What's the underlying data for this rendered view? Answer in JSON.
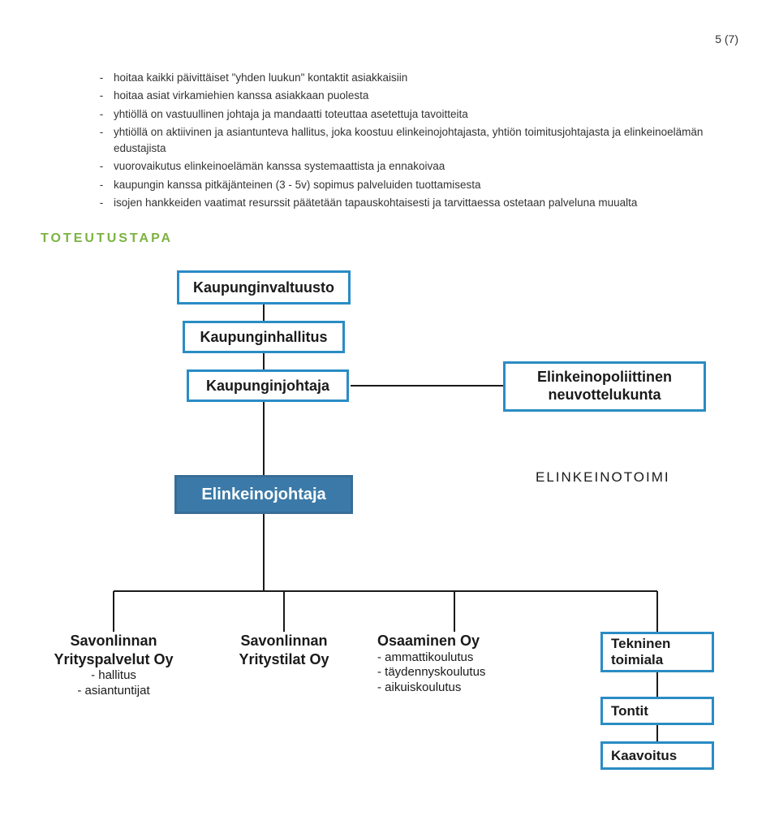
{
  "page_number": "5 (7)",
  "bullets": [
    "hoitaa kaikki päivittäiset \"yhden luukun\" kontaktit asiakkaisiin",
    "hoitaa asiat virkamiehien kanssa asiakkaan puolesta",
    "yhtiöllä on vastuullinen johtaja ja mandaatti toteuttaa asetettuja tavoitteita",
    "yhtiöllä on aktiivinen ja asiantunteva hallitus, joka koostuu elinkeinojohtajasta, yhtiön toimitusjohtajasta ja elinkeinoelämän edustajista",
    "vuorovaikutus elinkeinoelämän kanssa systemaattista ja ennakoivaa",
    "kaupungin kanssa pitkäjänteinen (3 - 5v) sopimus palveluiden tuottamisesta",
    "isojen hankkeiden vaatimat resurssit päätetään tapauskohtaisesti ja tarvittaessa ostetaan palveluna muualta"
  ],
  "section_title": "TOTEUTUSTAPA",
  "diagram": {
    "colors": {
      "blue_border": "#2a8cc4",
      "blue_fill": "#3b7aa8",
      "blue_fill_dark": "#396d96",
      "line": "#1a1a1a",
      "text": "#1a1a1a",
      "node_font_size": 18
    },
    "label_right": "ELINKEINOTOIMI",
    "top_chain": [
      {
        "id": "valtuusto",
        "label": "Kaupunginvaltuusto"
      },
      {
        "id": "hallitus",
        "label": "Kaupunginhallitus"
      },
      {
        "id": "johtaja",
        "label": "Kaupunginjohtaja"
      }
    ],
    "side_box": {
      "id": "neuvottelukunta",
      "line1": "Elinkeinopoliittinen",
      "line2": "neuvottelukunta"
    },
    "hub": {
      "id": "elinkeinojohtaja",
      "label": "Elinkeinojohtaja"
    },
    "children": [
      {
        "id": "yrityspalvelut",
        "title_l1": "Savonlinnan",
        "title_l2": "Yrityspalvelut Oy",
        "subs": [
          "- hallitus",
          "- asiantuntijat"
        ]
      },
      {
        "id": "yritystilat",
        "title_l1": "Savonlinnan",
        "title_l2": "Yritystilat Oy",
        "subs": []
      },
      {
        "id": "osaaminen",
        "title_l1": "Osaaminen Oy",
        "title_l2": "",
        "subs": [
          "- ammattikoulutus",
          "- täydennyskoulutus",
          "- aikuiskoulutus"
        ]
      }
    ],
    "right_stack": [
      {
        "id": "tekninen",
        "line1": "Tekninen",
        "line2": "toimiala"
      },
      {
        "id": "tontit",
        "line1": "Tontit",
        "line2": ""
      },
      {
        "id": "kaavoitus",
        "line1": "Kaavoitus",
        "line2": ""
      }
    ]
  }
}
